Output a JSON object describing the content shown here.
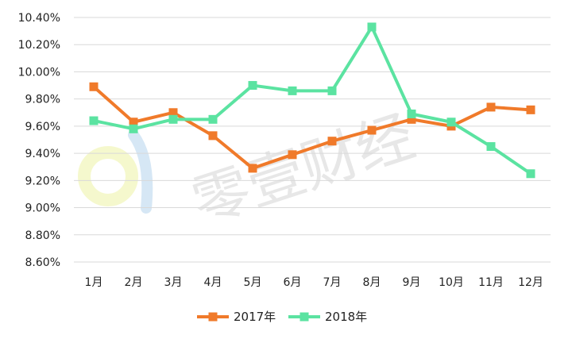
{
  "chart_data": {
    "type": "line",
    "categories": [
      "1月",
      "2月",
      "3月",
      "4月",
      "5月",
      "6月",
      "7月",
      "8月",
      "9月",
      "10月",
      "11月",
      "12月"
    ],
    "series": [
      {
        "name": "2017年",
        "color": "#f07a2a",
        "values": [
          9.89,
          9.63,
          9.7,
          9.53,
          9.29,
          9.39,
          9.49,
          9.57,
          9.65,
          9.6,
          9.74,
          9.72
        ]
      },
      {
        "name": "2018年",
        "color": "#5be3a1",
        "values": [
          9.64,
          9.58,
          9.65,
          9.65,
          9.9,
          9.86,
          9.86,
          10.33,
          9.69,
          9.63,
          9.45,
          9.25
        ]
      }
    ],
    "ylim": [
      8.6,
      10.4
    ],
    "yticks": [
      "10.40%",
      "10.20%",
      "10.00%",
      "9.80%",
      "9.60%",
      "9.40%",
      "9.20%",
      "9.00%",
      "8.80%",
      "8.60%"
    ],
    "grid": true,
    "legend_position": "bottom"
  },
  "watermark": {
    "text": "零壹财经",
    "icon": "brand-logo-icon"
  }
}
